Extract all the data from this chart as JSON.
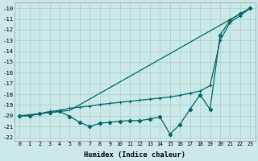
{
  "xlabel": "Humidex (Indice chaleur)",
  "xlim": [
    -0.5,
    23.5
  ],
  "ylim": [
    -22.3,
    -9.5
  ],
  "yticks": [
    -10,
    -11,
    -12,
    -13,
    -14,
    -15,
    -16,
    -17,
    -18,
    -19,
    -20,
    -21,
    -22
  ],
  "xticks": [
    0,
    1,
    2,
    3,
    4,
    5,
    6,
    7,
    8,
    9,
    10,
    11,
    12,
    13,
    14,
    15,
    16,
    17,
    18,
    19,
    20,
    21,
    22,
    23
  ],
  "bg_color": "#cce8e8",
  "grid_color": "#aacfcf",
  "line_color": "#006868",
  "line1_x": [
    0,
    5,
    23
  ],
  "line1_y": [
    -20.0,
    -19.5,
    -10.0
  ],
  "line2_x": [
    0,
    1,
    2,
    3,
    4,
    5,
    6,
    7,
    8,
    9,
    10,
    11,
    12,
    13,
    14,
    15,
    16,
    17,
    18,
    19,
    20,
    21,
    22,
    23
  ],
  "line2_y": [
    -20.0,
    -20.0,
    -19.8,
    -19.6,
    -19.5,
    -19.3,
    -19.2,
    -19.1,
    -18.95,
    -18.85,
    -18.75,
    -18.65,
    -18.55,
    -18.45,
    -18.35,
    -18.25,
    -18.1,
    -17.9,
    -17.7,
    -17.2,
    -13.0,
    -11.3,
    -10.7,
    -10.0
  ],
  "line3_x": [
    0,
    1,
    2,
    3,
    4,
    5,
    6,
    7,
    8,
    9,
    10,
    11,
    12,
    13,
    14,
    15,
    16,
    17,
    18,
    19,
    20,
    21,
    22,
    23
  ],
  "line3_y": [
    -20.0,
    -20.0,
    -19.8,
    -19.7,
    -19.6,
    -20.05,
    -20.6,
    -21.0,
    -20.7,
    -20.6,
    -20.5,
    -20.45,
    -20.45,
    -20.3,
    -20.1,
    -21.7,
    -20.8,
    -19.4,
    -18.05,
    -19.4,
    -12.5,
    -11.1,
    -10.5,
    -10.0
  ]
}
